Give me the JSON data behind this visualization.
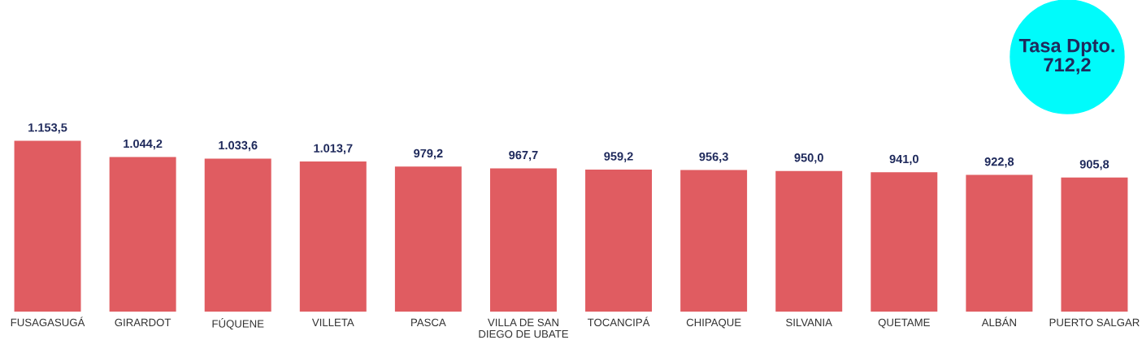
{
  "chart_data": {
    "type": "bar",
    "categories": [
      "FUSAGASUGÁ",
      "GIRARDOT",
      "FÚQUENE",
      "VILLETA",
      "PASCA",
      "VILLA DE SAN DIEGO DE UBATE",
      "TOCANCIPÁ",
      "CHIPAQUE",
      "SILVANIA",
      "QUETAME",
      "ALBÁN",
      "PUERTO SALGAR"
    ],
    "values": [
      1153.5,
      1044.2,
      1033.6,
      1013.7,
      979.2,
      967.7,
      959.2,
      956.3,
      950.0,
      941.0,
      922.8,
      905.8
    ],
    "value_labels": [
      "1.153,5",
      "1.044,2",
      "1.033,6",
      "1.013,7",
      "979,2",
      "967,7",
      "959,2",
      "956,3",
      "950,0",
      "941,0",
      "922,8",
      "905,8"
    ],
    "color": "#e05c61",
    "annotations": [
      "Tasa Dpto.\n712,2"
    ],
    "grid": false,
    "legend": false
  }
}
